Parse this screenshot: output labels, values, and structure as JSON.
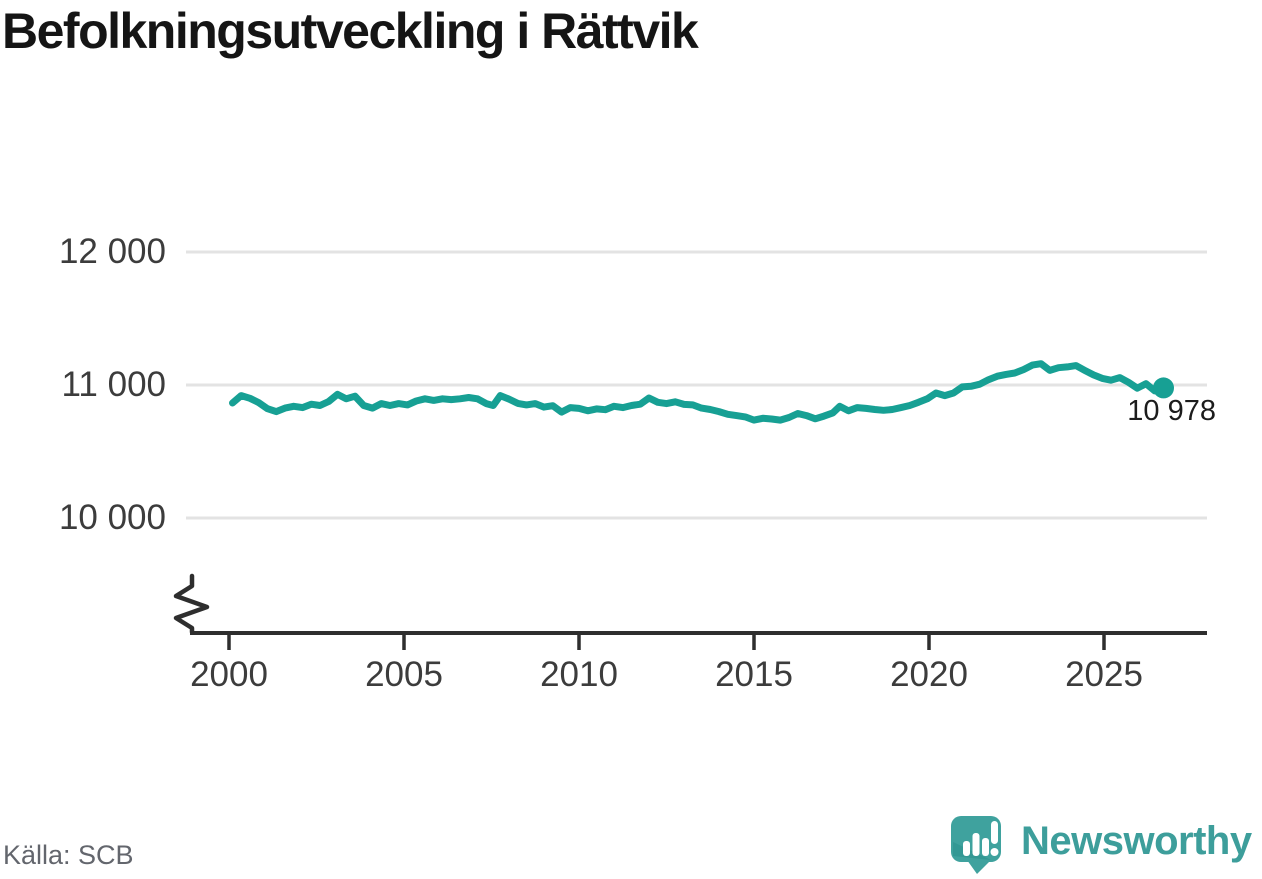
{
  "chart_data": {
    "type": "line",
    "title": "Befolkningsutveckling i Rättvik",
    "y_ticks": [
      12000,
      11000,
      10000
    ],
    "y_tick_labels": [
      "12 000",
      "11 000",
      "10 000"
    ],
    "x_ticks": [
      2000,
      2005,
      2010,
      2015,
      2020,
      2025
    ],
    "x_tick_labels": [
      "2000",
      "2005",
      "2010",
      "2015",
      "2020",
      "2025"
    ],
    "ylim": [
      10000,
      12000
    ],
    "xlim": [
      2000,
      2027
    ],
    "axis_break": true,
    "grid": "horizontal",
    "legend": "none",
    "end_label": "10 978",
    "last_value": 10978,
    "colors": {
      "line": "#17a094",
      "grid": "#e3e3e3",
      "axis": "#2e2e2e"
    },
    "points": [
      [
        2000.1,
        10865
      ],
      [
        2000.35,
        10920
      ],
      [
        2000.6,
        10900
      ],
      [
        2000.85,
        10868
      ],
      [
        2001.1,
        10822
      ],
      [
        2001.35,
        10800
      ],
      [
        2001.6,
        10826
      ],
      [
        2001.85,
        10840
      ],
      [
        2002.1,
        10830
      ],
      [
        2002.35,
        10856
      ],
      [
        2002.6,
        10846
      ],
      [
        2002.85,
        10876
      ],
      [
        2003.1,
        10930
      ],
      [
        2003.35,
        10896
      ],
      [
        2003.6,
        10916
      ],
      [
        2003.85,
        10846
      ],
      [
        2004.1,
        10826
      ],
      [
        2004.35,
        10860
      ],
      [
        2004.6,
        10846
      ],
      [
        2004.85,
        10860
      ],
      [
        2005.1,
        10850
      ],
      [
        2005.35,
        10880
      ],
      [
        2005.6,
        10896
      ],
      [
        2005.85,
        10884
      ],
      [
        2006.1,
        10896
      ],
      [
        2006.35,
        10890
      ],
      [
        2006.6,
        10896
      ],
      [
        2006.85,
        10906
      ],
      [
        2007.1,
        10896
      ],
      [
        2007.35,
        10860
      ],
      [
        2007.55,
        10846
      ],
      [
        2007.75,
        10920
      ],
      [
        2008.0,
        10894
      ],
      [
        2008.25,
        10862
      ],
      [
        2008.5,
        10850
      ],
      [
        2008.75,
        10860
      ],
      [
        2009.0,
        10834
      ],
      [
        2009.25,
        10844
      ],
      [
        2009.5,
        10796
      ],
      [
        2009.75,
        10830
      ],
      [
        2010.0,
        10824
      ],
      [
        2010.25,
        10806
      ],
      [
        2010.5,
        10820
      ],
      [
        2010.75,
        10814
      ],
      [
        2011.0,
        10840
      ],
      [
        2011.25,
        10830
      ],
      [
        2011.5,
        10846
      ],
      [
        2011.75,
        10856
      ],
      [
        2012.0,
        10902
      ],
      [
        2012.25,
        10870
      ],
      [
        2012.5,
        10860
      ],
      [
        2012.75,
        10874
      ],
      [
        2013.0,
        10854
      ],
      [
        2013.25,
        10850
      ],
      [
        2013.5,
        10826
      ],
      [
        2013.75,
        10816
      ],
      [
        2014.0,
        10800
      ],
      [
        2014.25,
        10780
      ],
      [
        2014.5,
        10770
      ],
      [
        2014.75,
        10760
      ],
      [
        2015.0,
        10736
      ],
      [
        2015.25,
        10750
      ],
      [
        2015.5,
        10744
      ],
      [
        2015.75,
        10736
      ],
      [
        2016.0,
        10756
      ],
      [
        2016.25,
        10786
      ],
      [
        2016.5,
        10770
      ],
      [
        2016.75,
        10746
      ],
      [
        2017.0,
        10766
      ],
      [
        2017.25,
        10790
      ],
      [
        2017.45,
        10840
      ],
      [
        2017.7,
        10806
      ],
      [
        2017.95,
        10830
      ],
      [
        2018.2,
        10824
      ],
      [
        2018.45,
        10816
      ],
      [
        2018.7,
        10810
      ],
      [
        2018.95,
        10816
      ],
      [
        2019.2,
        10830
      ],
      [
        2019.45,
        10846
      ],
      [
        2019.7,
        10870
      ],
      [
        2019.95,
        10896
      ],
      [
        2020.2,
        10940
      ],
      [
        2020.45,
        10920
      ],
      [
        2020.7,
        10940
      ],
      [
        2020.95,
        10986
      ],
      [
        2021.2,
        10990
      ],
      [
        2021.45,
        11006
      ],
      [
        2021.7,
        11040
      ],
      [
        2021.95,
        11066
      ],
      [
        2022.2,
        11080
      ],
      [
        2022.45,
        11090
      ],
      [
        2022.7,
        11116
      ],
      [
        2022.95,
        11150
      ],
      [
        2023.2,
        11160
      ],
      [
        2023.45,
        11110
      ],
      [
        2023.7,
        11130
      ],
      [
        2023.95,
        11136
      ],
      [
        2024.2,
        11146
      ],
      [
        2024.45,
        11110
      ],
      [
        2024.7,
        11076
      ],
      [
        2024.95,
        11050
      ],
      [
        2025.2,
        11036
      ],
      [
        2025.45,
        11056
      ],
      [
        2025.7,
        11020
      ],
      [
        2025.95,
        10976
      ],
      [
        2026.2,
        11010
      ],
      [
        2026.45,
        10956
      ],
      [
        2026.7,
        10978
      ]
    ]
  },
  "footer": {
    "source_label": "Källa: SCB",
    "brand_name": "Newsworthy",
    "brand_color": "#3d9e9b"
  }
}
